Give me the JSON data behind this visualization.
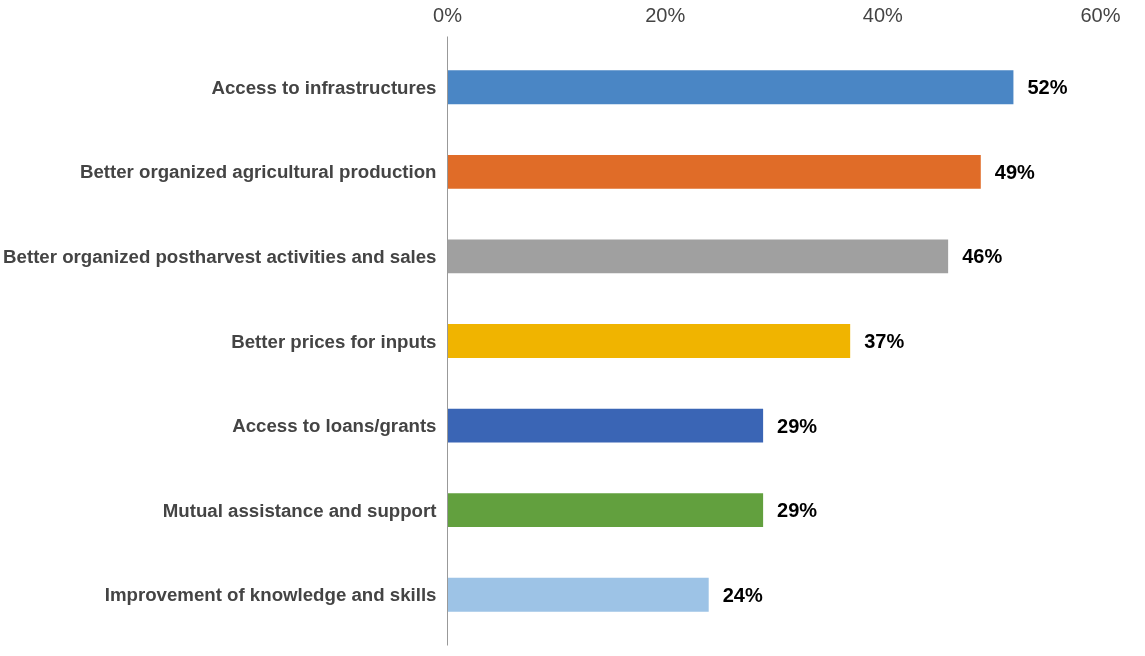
{
  "chart_data": {
    "type": "bar",
    "orientation": "horizontal",
    "categories": [
      "Access to infrastructures",
      "Better organized agricultural production",
      "Better organized postharvest activities and sales",
      "Better prices for inputs",
      "Access to loans/grants",
      "Mutual assistance and support",
      "Improvement of knowledge and skills"
    ],
    "values": [
      52,
      49,
      46,
      37,
      29,
      29,
      24
    ],
    "colors": [
      "#4a86c5",
      "#e06c28",
      "#a0a0a0",
      "#f0b400",
      "#3a65b5",
      "#62a03e",
      "#9dc3e6"
    ],
    "value_labels": [
      "52%",
      "49%",
      "46%",
      "37%",
      "29%",
      "29%",
      "24%"
    ],
    "xlim": [
      0,
      60
    ],
    "xticks": [
      {
        "value": 0,
        "label": "0%"
      },
      {
        "value": 20,
        "label": "20%"
      },
      {
        "value": 40,
        "label": "40%"
      },
      {
        "value": 60,
        "label": "60%"
      }
    ],
    "grid": false
  }
}
